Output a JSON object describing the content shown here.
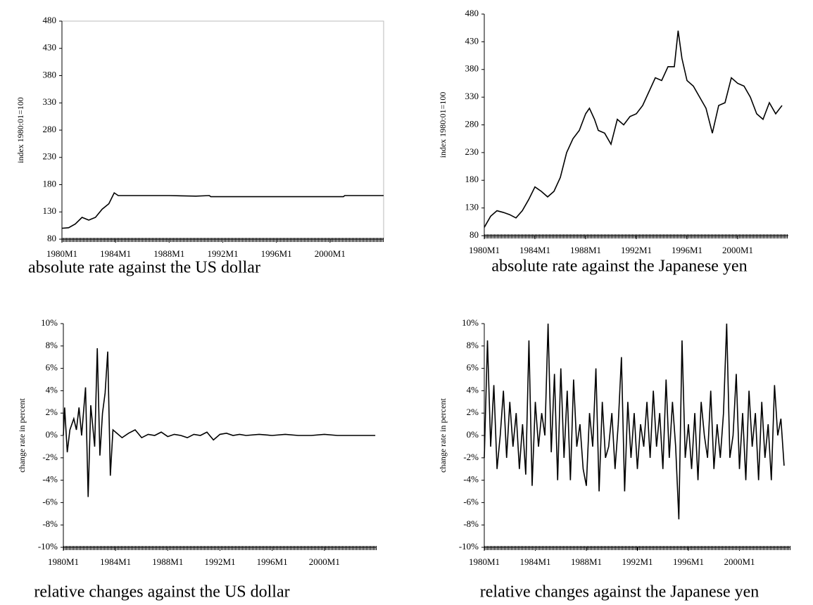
{
  "chart_data": [
    {
      "type": "line",
      "title": "absolute rate against the US dollar",
      "y_label": "index 1980:01=100",
      "color": "#000000",
      "frame": true,
      "xlim": [
        1980,
        2004
      ],
      "ylim": [
        80,
        480
      ],
      "xticks": [
        {
          "value": 1980,
          "label": "1980M1"
        },
        {
          "value": 1984,
          "label": "1984M1"
        },
        {
          "value": 1988,
          "label": "1988M1"
        },
        {
          "value": 1992,
          "label": "1992M1"
        },
        {
          "value": 1996,
          "label": "1996M1"
        },
        {
          "value": 2000,
          "label": "2000M1"
        }
      ],
      "yticks": [
        80,
        130,
        180,
        230,
        280,
        330,
        380,
        430,
        480
      ],
      "x": [
        1980,
        1980.5,
        1981,
        1981.5,
        1982,
        1982.5,
        1983,
        1983.5,
        1983.9,
        1984.2,
        1986,
        1988,
        1990,
        1991,
        1991.1,
        1995,
        2000,
        2001,
        2001.1,
        2004
      ],
      "values": [
        100,
        101,
        108,
        120,
        115,
        120,
        135,
        145,
        165,
        160,
        160,
        160,
        159,
        160,
        158,
        158,
        158,
        158,
        160,
        160
      ]
    },
    {
      "type": "line",
      "title": "absolute rate against the Japanese yen",
      "y_label": "index 1980:01=100",
      "color": "#000000",
      "frame": false,
      "xlim": [
        1980,
        2004
      ],
      "ylim": [
        80,
        480
      ],
      "xticks": [
        {
          "value": 1980,
          "label": "1980M1"
        },
        {
          "value": 1984,
          "label": "1984M1"
        },
        {
          "value": 1988,
          "label": "1988M1"
        },
        {
          "value": 1992,
          "label": "1992M1"
        },
        {
          "value": 1996,
          "label": "1996M1"
        },
        {
          "value": 2000,
          "label": "2000M1"
        }
      ],
      "yticks": [
        80,
        130,
        180,
        230,
        280,
        330,
        380,
        430,
        480
      ],
      "x": [
        1980,
        1980.5,
        1981,
        1981.5,
        1982,
        1982.5,
        1983,
        1983.5,
        1984,
        1984.5,
        1985,
        1985.5,
        1986,
        1986.5,
        1987,
        1987.5,
        1988,
        1988.3,
        1988.7,
        1989,
        1989.5,
        1990,
        1990.5,
        1991,
        1991.5,
        1992,
        1992.5,
        1993,
        1993.5,
        1994,
        1994.5,
        1995,
        1995.3,
        1995.6,
        1996,
        1996.5,
        1997,
        1997.5,
        1998,
        1998.5,
        1999,
        1999.5,
        2000,
        2000.5,
        2001,
        2001.5,
        2002,
        2002.5,
        2003,
        2003.5
      ],
      "values": [
        95,
        115,
        125,
        122,
        118,
        112,
        125,
        145,
        168,
        160,
        150,
        160,
        185,
        230,
        255,
        270,
        300,
        310,
        290,
        270,
        265,
        245,
        290,
        280,
        295,
        300,
        315,
        340,
        365,
        360,
        385,
        385,
        450,
        400,
        360,
        350,
        330,
        310,
        265,
        315,
        320,
        365,
        355,
        350,
        330,
        300,
        290,
        320,
        300,
        315
      ]
    },
    {
      "type": "line",
      "title": "relative changes against the US dollar",
      "y_label": "change rate in percent",
      "color": "#000000",
      "frame": false,
      "xlim": [
        1980,
        2004
      ],
      "ylim": [
        -10,
        10
      ],
      "xticks": [
        {
          "value": 1980,
          "label": "1980M1"
        },
        {
          "value": 1984,
          "label": "1984M1"
        },
        {
          "value": 1988,
          "label": "1988M1"
        },
        {
          "value": 1992,
          "label": "1992M1"
        },
        {
          "value": 1996,
          "label": "1996M1"
        },
        {
          "value": 2000,
          "label": "2000M1"
        }
      ],
      "yticks": [
        {
          "value": -10,
          "label": "-10%"
        },
        {
          "value": -8,
          "label": "-8%"
        },
        {
          "value": -6,
          "label": "-6%"
        },
        {
          "value": -4,
          "label": "-4%"
        },
        {
          "value": -2,
          "label": "-2%"
        },
        {
          "value": 0,
          "label": "0%"
        },
        {
          "value": 2,
          "label": "2%"
        },
        {
          "value": 4,
          "label": "4%"
        },
        {
          "value": 6,
          "label": "6%"
        },
        {
          "value": 8,
          "label": "8%"
        },
        {
          "value": 10,
          "label": "10%"
        }
      ],
      "x": [
        1980,
        1980.1,
        1980.3,
        1980.5,
        1980.8,
        1981,
        1981.2,
        1981.4,
        1981.7,
        1981.9,
        1982.1,
        1982.4,
        1982.6,
        1982.8,
        1983,
        1983.2,
        1983.4,
        1983.6,
        1983.8,
        1984,
        1984.5,
        1985,
        1985.5,
        1986,
        1986.5,
        1987,
        1987.5,
        1988,
        1988.5,
        1989,
        1989.5,
        1990,
        1990.5,
        1991,
        1991.5,
        1992,
        1992.5,
        1993,
        1993.5,
        1994,
        1995,
        1996,
        1997,
        1998,
        1999,
        2000,
        2001,
        2002,
        2003,
        2003.9
      ],
      "values": [
        0,
        2.5,
        -1.5,
        0.5,
        1.5,
        0.5,
        2.5,
        0,
        4.3,
        -5.5,
        2.7,
        -1,
        7.8,
        -1.8,
        2,
        3.8,
        7.5,
        -3.6,
        0.5,
        0.3,
        -0.2,
        0.2,
        0.5,
        -0.2,
        0.1,
        0,
        0.3,
        -0.1,
        0.1,
        0,
        -0.2,
        0.1,
        0,
        0.3,
        -0.4,
        0.1,
        0.2,
        0,
        0.1,
        0,
        0.1,
        0,
        0.1,
        0,
        0,
        0.1,
        0,
        0,
        0,
        0
      ]
    },
    {
      "type": "line",
      "title": "relative changes against the Japanese yen",
      "y_label": "change rate in percent",
      "color": "#000000",
      "frame": false,
      "xlim": [
        1980,
        2004
      ],
      "ylim": [
        -10,
        10
      ],
      "xticks": [
        {
          "value": 1980,
          "label": "1980M1"
        },
        {
          "value": 1984,
          "label": "1984M1"
        },
        {
          "value": 1988,
          "label": "1988M1"
        },
        {
          "value": 1992,
          "label": "1992M1"
        },
        {
          "value": 1996,
          "label": "1996M1"
        },
        {
          "value": 2000,
          "label": "2000M1"
        }
      ],
      "yticks": [
        {
          "value": -10,
          "label": "-10%"
        },
        {
          "value": -8,
          "label": "-8%"
        },
        {
          "value": -6,
          "label": "-6%"
        },
        {
          "value": -4,
          "label": "-4%"
        },
        {
          "value": -2,
          "label": "-2%"
        },
        {
          "value": 0,
          "label": "0%"
        },
        {
          "value": 2,
          "label": "2%"
        },
        {
          "value": 4,
          "label": "4%"
        },
        {
          "value": 6,
          "label": "6%"
        },
        {
          "value": 8,
          "label": "8%"
        },
        {
          "value": 10,
          "label": "10%"
        }
      ],
      "x": [
        1980,
        1980.25,
        1980.5,
        1980.75,
        1981,
        1981.25,
        1981.5,
        1981.75,
        1982,
        1982.25,
        1982.5,
        1982.75,
        1983,
        1983.25,
        1983.5,
        1983.75,
        1984,
        1984.25,
        1984.5,
        1984.75,
        1985,
        1985.25,
        1985.5,
        1985.75,
        1986,
        1986.25,
        1986.5,
        1986.75,
        1987,
        1987.25,
        1987.5,
        1987.75,
        1988,
        1988.25,
        1988.5,
        1988.75,
        1989,
        1989.25,
        1989.5,
        1989.75,
        1990,
        1990.25,
        1990.5,
        1990.75,
        1991,
        1991.25,
        1991.5,
        1991.75,
        1992,
        1992.25,
        1992.5,
        1992.75,
        1993,
        1993.25,
        1993.5,
        1993.75,
        1994,
        1994.25,
        1994.5,
        1994.75,
        1995,
        1995.25,
        1995.5,
        1995.75,
        1996,
        1996.25,
        1996.5,
        1996.75,
        1997,
        1997.25,
        1997.5,
        1997.75,
        1998,
        1998.25,
        1998.5,
        1998.75,
        1999,
        1999.25,
        1999.5,
        1999.75,
        2000,
        2000.25,
        2000.5,
        2000.75,
        2001,
        2001.25,
        2001.5,
        2001.75,
        2002,
        2002.25,
        2002.5,
        2002.75,
        2003,
        2003.25,
        2003.5
      ],
      "values": [
        -2,
        8.5,
        -1,
        4.5,
        -3,
        0,
        4,
        -2,
        3,
        -1,
        2,
        -3,
        1,
        -3.5,
        8.5,
        -4.5,
        3,
        -1,
        2,
        0,
        10,
        -1.5,
        5.5,
        -4,
        6,
        -2,
        4,
        -4,
        5,
        -1,
        1,
        -3,
        -4.5,
        2,
        -1,
        6,
        -5,
        3,
        -2,
        -1,
        2,
        -3,
        1,
        7,
        -5,
        3,
        -2,
        2,
        -3,
        1,
        -1,
        3,
        -2,
        4,
        -1,
        2,
        -3,
        5,
        -2,
        3,
        -1,
        -7.5,
        8.5,
        -2,
        1,
        -3,
        2,
        -4,
        3,
        0,
        -2,
        4,
        -3,
        1,
        -2,
        2,
        10,
        -2,
        0,
        5.5,
        -3,
        2,
        -4,
        4,
        -1,
        2,
        -4,
        3,
        -2,
        1,
        -4,
        4.5,
        0,
        1.5,
        -2.7
      ]
    }
  ]
}
